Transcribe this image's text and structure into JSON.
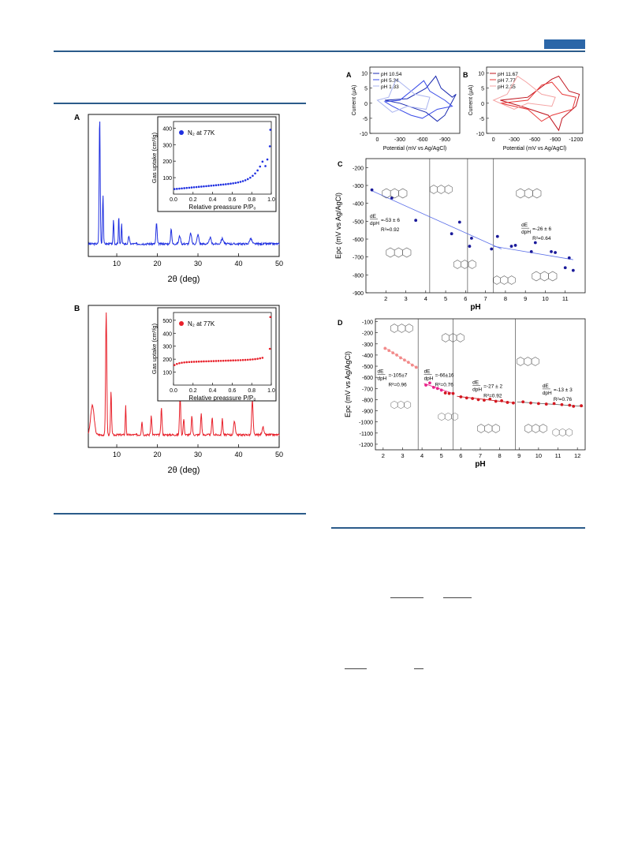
{
  "page": {
    "accent": "#2b66a8"
  },
  "figA": {
    "letter": "A",
    "xlabel": "2θ (deg)",
    "xticks": [
      "10",
      "20",
      "30",
      "40",
      "50"
    ],
    "color": "#1f2fe0",
    "inset": {
      "legend": "N₂ at 77K",
      "ylabel": "Gas uptake (cm³/g)",
      "xlabel": "Relative preassure P/P₀",
      "yticks": [
        "100",
        "200",
        "300",
        "400"
      ],
      "xticks": [
        "0.0",
        "0.2",
        "0.4",
        "0.6",
        "0.8",
        "1.0"
      ]
    }
  },
  "figB": {
    "letter": "B",
    "xlabel": "2θ (deg)",
    "xticks": [
      "10",
      "20",
      "30",
      "40",
      "50"
    ],
    "color": "#e8202a",
    "inset": {
      "legend": "N₂ at 77K",
      "ylabel": "Gas uptake (cm³/g)",
      "xlabel": "Relative preassure P/P₀",
      "yticks": [
        "100",
        "200",
        "300",
        "400",
        "500"
      ],
      "xticks": [
        "0.0",
        "0.2",
        "0.4",
        "0.6",
        "0.8",
        "1.0"
      ]
    }
  },
  "cvA": {
    "letter": "A",
    "ylabel": "Current (μA)",
    "xlabel": "Potential (mV vs Ag/AgCl)",
    "yticks": [
      "10",
      "5",
      "0",
      "-5",
      "-10"
    ],
    "xticks": [
      "0",
      "-300",
      "-600",
      "-900"
    ],
    "legend": [
      "pH 10.54",
      "pH 5.34",
      "pH 1.33"
    ]
  },
  "cvB": {
    "letter": "B",
    "ylabel": "Current (μA)",
    "xlabel": "Potential (mV vs Ag/AgCl)",
    "yticks": [
      "10",
      "5",
      "0",
      "-5",
      "-10"
    ],
    "xticks": [
      "0",
      "-300",
      "-600",
      "-900",
      "-1200"
    ],
    "legend": [
      "pH 11.67",
      "pH 7.77",
      "pH 2.35"
    ]
  },
  "plotC": {
    "letter": "C",
    "ylabel": "Epc (mV vs Ag/AgCl)",
    "xlabel": "pH",
    "yticks": [
      "-200",
      "-300",
      "-400",
      "-500",
      "-600",
      "-700",
      "-800",
      "-900"
    ],
    "xticks": [
      "2",
      "3",
      "4",
      "5",
      "6",
      "7",
      "8",
      "9",
      "10",
      "11"
    ],
    "ann1": [
      "dE",
      "dpH",
      "=-53 ± 6",
      "R²=0.92"
    ],
    "ann2": [
      "dE",
      "dpH",
      "=-26 ± 6",
      "R²=0.64"
    ]
  },
  "plotD": {
    "letter": "D",
    "ylabel": "Epc (mV vs Ag/AgCl)",
    "xlabel": "pH",
    "yticks": [
      "-100",
      "-200",
      "-300",
      "-400",
      "-500",
      "-600",
      "-700",
      "-800",
      "-900",
      "-1000",
      "-1100",
      "-1200"
    ],
    "xticks": [
      "2",
      "3",
      "4",
      "5",
      "6",
      "7",
      "8",
      "9",
      "10",
      "11",
      "12"
    ],
    "ann1": [
      "dE",
      "dpH",
      "=-105±7",
      "R²=0.96"
    ],
    "ann2": [
      "dE",
      "dpH",
      "=-66±16",
      "R²=0.76"
    ],
    "ann3": [
      "dE",
      "dpH",
      "=-27 ± 2",
      "R²=0.92"
    ],
    "ann4": [
      "dE",
      "dpH",
      "=-13 ± 3",
      "R²=0.76"
    ]
  }
}
